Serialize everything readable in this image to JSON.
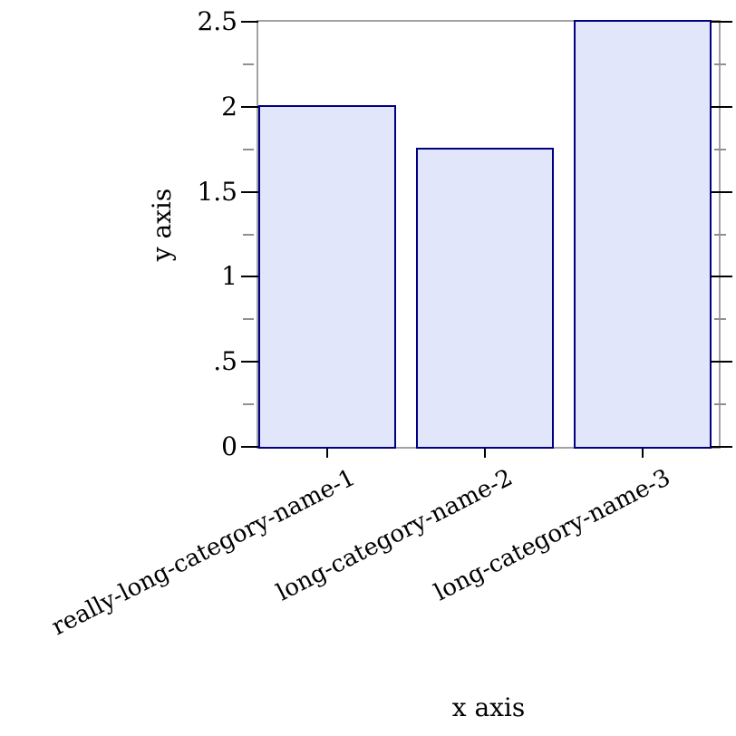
{
  "chart_data": {
    "type": "bar",
    "title": "",
    "xlabel": "x axis",
    "ylabel": "y axis",
    "categories": [
      "really-long-category-name-1",
      "long-category-name-2",
      "long-category-name-3"
    ],
    "values": [
      2,
      1.75,
      2.5
    ],
    "ylim": [
      0,
      2.5
    ],
    "y_major_ticks": [
      {
        "value": 0,
        "label": "0"
      },
      {
        "value": 0.5,
        "label": ".5"
      },
      {
        "value": 1,
        "label": "1"
      },
      {
        "value": 1.5,
        "label": "1.5"
      },
      {
        "value": 2,
        "label": "2"
      },
      {
        "value": 2.5,
        "label": "2.5"
      }
    ],
    "y_minor_ticks": [
      0.25,
      0.75,
      1.25,
      1.75,
      2.25
    ],
    "grid": false,
    "legend": "none",
    "layout_hints": {
      "bars_start_at_left_axis": true,
      "right_border_has_mirrored_ticks": true,
      "x_tick_label_rotation_deg": -27
    },
    "colors": {
      "bar_fill": "#e2e6fb",
      "bar_border": "#000080",
      "frame": "#a3a3a3",
      "major_tick": "#000000",
      "minor_tick": "#909090",
      "text": "#000000",
      "background": "#ffffff"
    }
  }
}
